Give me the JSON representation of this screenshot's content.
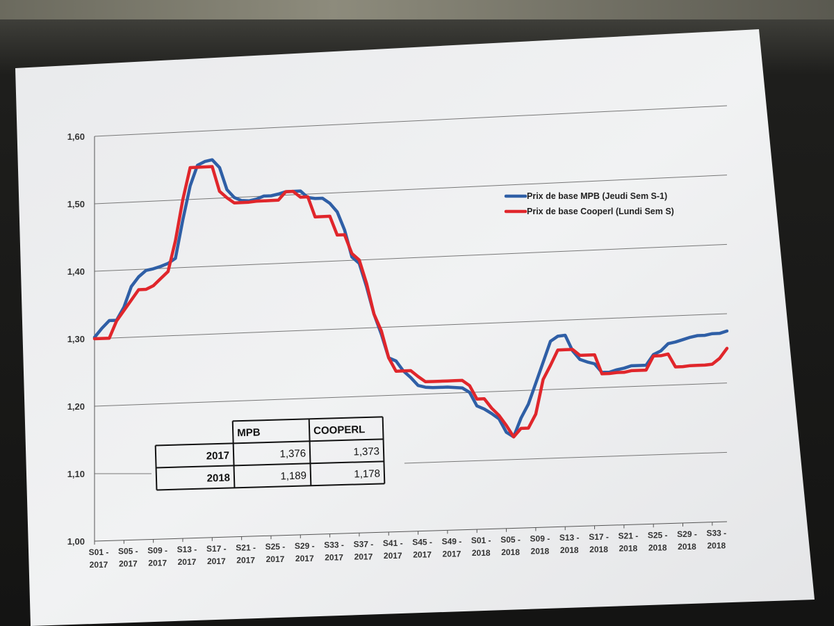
{
  "chart_data": {
    "type": "line",
    "title": "",
    "xlabel": "",
    "ylabel": "",
    "ylim": [
      1.0,
      1.6
    ],
    "yticks": [
      "1,00",
      "1,10",
      "1,20",
      "1,30",
      "1,40",
      "1,50",
      "1,60"
    ],
    "x_tick_labels": [
      [
        "S01 -",
        "2017"
      ],
      [
        "S05 -",
        "2017"
      ],
      [
        "S09 -",
        "2017"
      ],
      [
        "S13 -",
        "2017"
      ],
      [
        "S17 -",
        "2017"
      ],
      [
        "S21 -",
        "2017"
      ],
      [
        "S25 -",
        "2017"
      ],
      [
        "S29 -",
        "2017"
      ],
      [
        "S33 -",
        "2017"
      ],
      [
        "S37 -",
        "2017"
      ],
      [
        "S41 -",
        "2017"
      ],
      [
        "S45 -",
        "2017"
      ],
      [
        "S49 -",
        "2017"
      ],
      [
        "S01 -",
        "2018"
      ],
      [
        "S05 -",
        "2018"
      ],
      [
        "S09 -",
        "2018"
      ],
      [
        "S13 -",
        "2018"
      ],
      [
        "S17 -",
        "2018"
      ],
      [
        "S21 -",
        "2018"
      ],
      [
        "S25 -",
        "2018"
      ],
      [
        "S29 -",
        "2018"
      ],
      [
        "S33 -",
        "2018"
      ]
    ],
    "grid": true,
    "legend_position": "top-right",
    "series": [
      {
        "name": "Prix de base MPB (Jeudi Sem S-1)",
        "color": "#2f5fa6",
        "values": [
          1.302,
          1.315,
          1.326,
          1.326,
          1.345,
          1.375,
          1.389,
          1.398,
          1.4,
          1.403,
          1.407,
          1.414,
          1.47,
          1.52,
          1.55,
          1.555,
          1.557,
          1.545,
          1.512,
          1.5,
          1.495,
          1.494,
          1.496,
          1.5,
          1.5,
          1.502,
          1.505,
          1.505,
          1.505,
          1.495,
          1.493,
          1.493,
          1.485,
          1.472,
          1.445,
          1.405,
          1.395,
          1.36,
          1.32,
          1.29,
          1.255,
          1.25,
          1.235,
          1.225,
          1.213,
          1.21,
          1.209,
          1.209,
          1.209,
          1.208,
          1.207,
          1.2,
          1.18,
          1.175,
          1.168,
          1.16,
          1.14,
          1.133,
          1.16,
          1.18,
          1.21,
          1.24,
          1.27,
          1.277,
          1.278,
          1.255,
          1.242,
          1.238,
          1.235,
          1.222,
          1.222,
          1.225,
          1.227,
          1.23,
          1.23,
          1.23,
          1.245,
          1.25,
          1.26,
          1.262,
          1.265,
          1.268,
          1.27,
          1.27,
          1.272,
          1.272,
          1.275
        ]
      },
      {
        "name": "Prix de base Cooperl (Lundi Sem S)",
        "color": "#e0262b",
        "values": [
          1.3,
          1.3,
          1.3,
          1.325,
          1.34,
          1.355,
          1.37,
          1.37,
          1.375,
          1.385,
          1.395,
          1.44,
          1.5,
          1.547,
          1.547,
          1.547,
          1.547,
          1.51,
          1.5,
          1.492,
          1.492,
          1.492,
          1.493,
          1.493,
          1.493,
          1.493,
          1.505,
          1.505,
          1.496,
          1.496,
          1.466,
          1.466,
          1.466,
          1.438,
          1.438,
          1.41,
          1.4,
          1.365,
          1.32,
          1.295,
          1.255,
          1.235,
          1.235,
          1.235,
          1.226,
          1.218,
          1.218,
          1.218,
          1.218,
          1.218,
          1.218,
          1.21,
          1.19,
          1.19,
          1.176,
          1.165,
          1.15,
          1.133,
          1.145,
          1.145,
          1.165,
          1.215,
          1.235,
          1.257,
          1.257,
          1.257,
          1.248,
          1.248,
          1.248,
          1.22,
          1.22,
          1.221,
          1.221,
          1.223,
          1.223,
          1.223,
          1.243,
          1.243,
          1.245,
          1.226,
          1.226,
          1.227,
          1.227,
          1.227,
          1.228,
          1.236,
          1.25
        ]
      }
    ]
  },
  "table": {
    "headers": [
      "",
      "MPB",
      "COOPERL"
    ],
    "rows": [
      [
        "2017",
        "1,376",
        "1,373"
      ],
      [
        "2018",
        "1,189",
        "1,178"
      ]
    ]
  }
}
